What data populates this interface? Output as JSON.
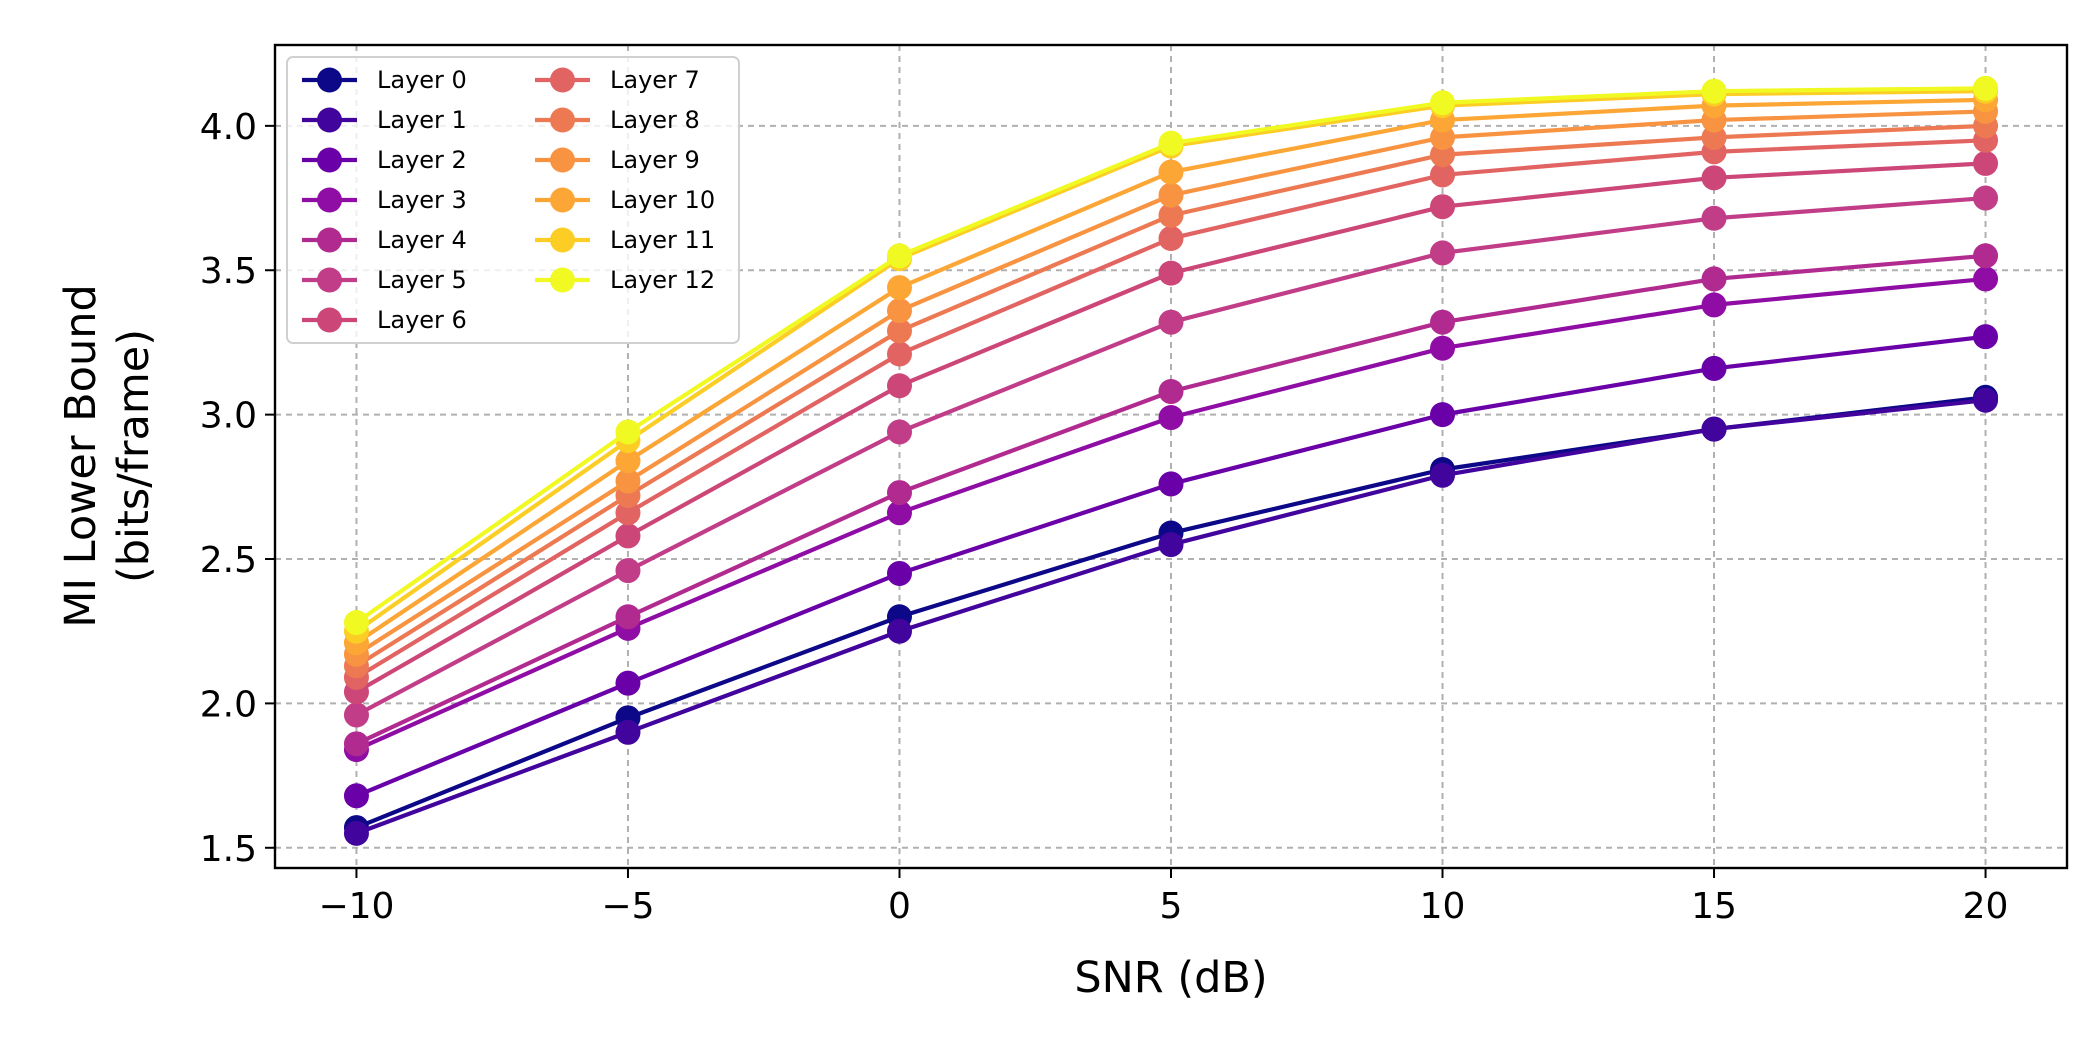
{
  "chart_data": {
    "type": "line",
    "title": "",
    "xlabel": "SNR (dB)",
    "ylabel": [
      "MI Lower Bound",
      "(bits/frame)"
    ],
    "x": [
      -10,
      -5,
      0,
      5,
      10,
      15,
      20
    ],
    "xlim": [
      -11.5,
      21.5
    ],
    "ylim": [
      1.43,
      4.28
    ],
    "xticks": [
      -10,
      -5,
      0,
      5,
      10,
      15,
      20
    ],
    "xtick_labels": [
      "−10",
      "−5",
      "0",
      "5",
      "10",
      "15",
      "20"
    ],
    "yticks": [
      1.5,
      2.0,
      2.5,
      3.0,
      3.5,
      4.0
    ],
    "ytick_labels": [
      "1.5",
      "2.0",
      "2.5",
      "3.0",
      "3.5",
      "4.0"
    ],
    "grid": true,
    "legend_position": "top-left",
    "legend_columns": 2,
    "series": [
      {
        "name": "Layer 0",
        "color": "#0d0887",
        "values": [
          1.57,
          1.95,
          2.3,
          2.59,
          2.81,
          2.95,
          3.06
        ]
      },
      {
        "name": "Layer 1",
        "color": "#41049d",
        "values": [
          1.55,
          1.9,
          2.25,
          2.55,
          2.79,
          2.95,
          3.05
        ]
      },
      {
        "name": "Layer 2",
        "color": "#6a00a8",
        "values": [
          1.68,
          2.07,
          2.45,
          2.76,
          3.0,
          3.16,
          3.27
        ]
      },
      {
        "name": "Layer 3",
        "color": "#8f0da4",
        "values": [
          1.84,
          2.26,
          2.66,
          2.99,
          3.23,
          3.38,
          3.47
        ]
      },
      {
        "name": "Layer 4",
        "color": "#b12a90",
        "values": [
          1.86,
          2.3,
          2.73,
          3.08,
          3.32,
          3.47,
          3.55
        ]
      },
      {
        "name": "Layer 5",
        "color": "#c13d88",
        "values": [
          1.96,
          2.46,
          2.94,
          3.32,
          3.56,
          3.68,
          3.75
        ]
      },
      {
        "name": "Layer 6",
        "color": "#cc4778",
        "values": [
          2.04,
          2.58,
          3.1,
          3.49,
          3.72,
          3.82,
          3.87
        ]
      },
      {
        "name": "Layer 7",
        "color": "#e16462",
        "values": [
          2.09,
          2.66,
          3.21,
          3.61,
          3.83,
          3.91,
          3.95
        ]
      },
      {
        "name": "Layer 8",
        "color": "#ed7953",
        "values": [
          2.13,
          2.72,
          3.29,
          3.69,
          3.9,
          3.96,
          4.0
        ]
      },
      {
        "name": "Layer 9",
        "color": "#f89441",
        "values": [
          2.17,
          2.77,
          3.36,
          3.76,
          3.96,
          4.02,
          4.05
        ]
      },
      {
        "name": "Layer 10",
        "color": "#fca636",
        "values": [
          2.21,
          2.84,
          3.44,
          3.84,
          4.02,
          4.07,
          4.09
        ]
      },
      {
        "name": "Layer 11",
        "color": "#fccd25",
        "values": [
          2.25,
          2.91,
          3.54,
          3.93,
          4.07,
          4.11,
          4.12
        ]
      },
      {
        "name": "Layer 12",
        "color": "#f0f921",
        "values": [
          2.28,
          2.94,
          3.55,
          3.94,
          4.08,
          4.12,
          4.13
        ]
      }
    ]
  }
}
